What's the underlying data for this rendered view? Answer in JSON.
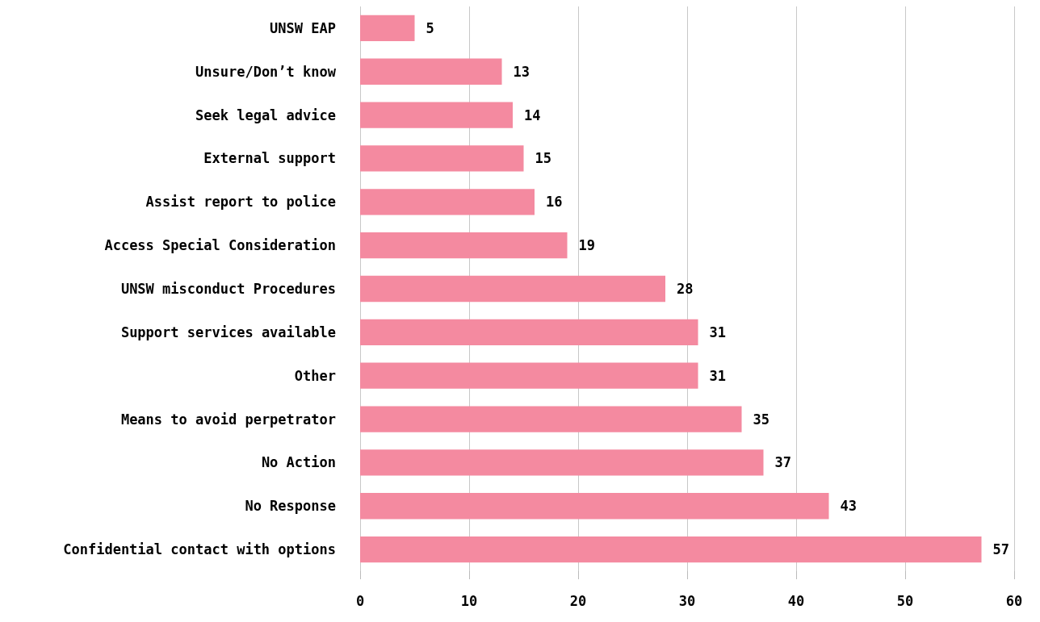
{
  "chart_data": {
    "type": "bar",
    "orientation": "horizontal",
    "categories": [
      "UNSW EAP",
      "Unsure/Don’t know",
      "Seek legal advice",
      "External support",
      "Assist report to police",
      "Access Special Consideration",
      "UNSW misconduct Procedures",
      "Support services available",
      "Other",
      "Means to avoid perpetrator",
      "No Action",
      "No Response",
      "Confidential contact with options"
    ],
    "values": [
      5,
      13,
      14,
      15,
      16,
      19,
      28,
      31,
      31,
      35,
      37,
      43,
      57
    ],
    "color": "#f48aa0",
    "xlim": [
      0,
      60
    ],
    "xticks": [
      0,
      10,
      20,
      30,
      40,
      50,
      60
    ],
    "grid": "x",
    "data_labels": true
  }
}
